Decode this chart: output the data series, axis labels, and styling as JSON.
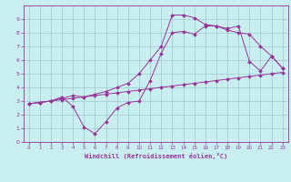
{
  "xlabel": "Windchill (Refroidissement éolien,°C)",
  "bg_color": "#c8eef0",
  "line_color": "#993399",
  "marker": "D",
  "xlim": [
    -0.5,
    23.5
  ],
  "ylim": [
    0,
    10
  ],
  "xticks": [
    0,
    1,
    2,
    3,
    4,
    5,
    6,
    7,
    8,
    9,
    10,
    11,
    12,
    13,
    14,
    15,
    16,
    17,
    18,
    19,
    20,
    21,
    22,
    23
  ],
  "yticks": [
    0,
    1,
    2,
    3,
    4,
    5,
    6,
    7,
    8,
    9
  ],
  "grid_color": "#a0c8d0",
  "line1_x": [
    0,
    1,
    2,
    3,
    4,
    5,
    6,
    7,
    8,
    9,
    10,
    11,
    12,
    13,
    14,
    15,
    16,
    17,
    18,
    19,
    20,
    21,
    22,
    23
  ],
  "line1_y": [
    2.8,
    2.9,
    3.0,
    3.1,
    3.2,
    3.3,
    3.4,
    3.5,
    3.6,
    3.7,
    3.8,
    3.9,
    4.0,
    4.1,
    4.2,
    4.3,
    4.4,
    4.5,
    4.6,
    4.7,
    4.8,
    4.9,
    5.0,
    5.1
  ],
  "line2_x": [
    0,
    1,
    2,
    3,
    4,
    5,
    6,
    7,
    8,
    9,
    10,
    11,
    12,
    13,
    14,
    15,
    16,
    17,
    18,
    19,
    20,
    21,
    22,
    23
  ],
  "line2_y": [
    2.8,
    2.9,
    3.0,
    3.2,
    3.4,
    3.3,
    3.5,
    3.7,
    4.0,
    4.3,
    5.0,
    6.0,
    7.0,
    9.3,
    9.3,
    9.1,
    8.6,
    8.5,
    8.2,
    8.0,
    7.9,
    7.0,
    6.3,
    5.4
  ],
  "line3_x": [
    0,
    1,
    2,
    3,
    4,
    5,
    6,
    7,
    8,
    9,
    10,
    11,
    12,
    13,
    14,
    15,
    16,
    17,
    18,
    19,
    20,
    21,
    22,
    23
  ],
  "line3_y": [
    2.8,
    2.9,
    3.0,
    3.3,
    2.6,
    1.1,
    0.6,
    1.5,
    2.5,
    2.9,
    3.0,
    4.5,
    6.5,
    8.0,
    8.1,
    7.9,
    8.5,
    8.5,
    8.3,
    8.5,
    5.9,
    5.2,
    6.3,
    5.4
  ],
  "tick_fontsize": 4.5,
  "xlabel_fontsize": 5.0
}
